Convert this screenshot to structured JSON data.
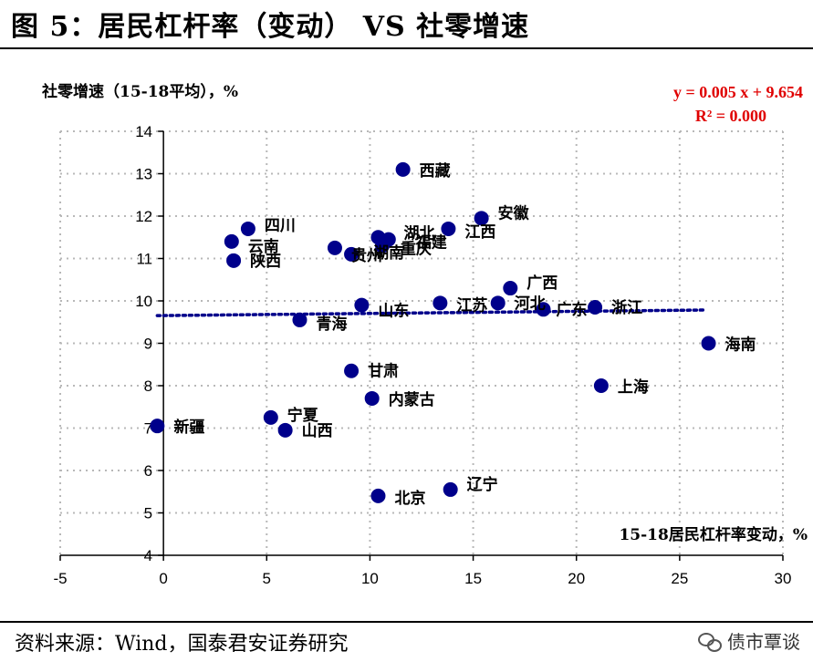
{
  "page": {
    "title": "图 5：居民杠杆率（变动） VS 社零增速",
    "source": "资料来源：Wind，国泰君安证券研究",
    "brand": "债市覃谈",
    "brand_icon": "wechat-icon"
  },
  "chart_data": {
    "type": "scatter",
    "ylabel": "社零增速（15-18平均），%",
    "xlabel": "15-18居民杠杆率变动，%",
    "xlim": [
      -5,
      30
    ],
    "ylim": [
      4,
      14
    ],
    "xticks": [
      "-5",
      "0",
      "5",
      "10",
      "15",
      "20",
      "25",
      "30"
    ],
    "yticks": [
      "4",
      "5",
      "6",
      "7",
      "8",
      "9",
      "10",
      "11",
      "12",
      "13",
      "14"
    ],
    "grid": true,
    "marker_color": "#00008b",
    "trendline_color": "#00008b",
    "equation": "y = 0.005 x + 9.654",
    "r_squared": "R² = 0.000",
    "equation_color": "#e00000",
    "trendline": {
      "slope": 0.005,
      "intercept": 9.654,
      "x_range": [
        -0.3,
        26.3
      ]
    },
    "points": [
      {
        "name": "西藏",
        "x": 11.6,
        "y": 13.1
      },
      {
        "name": "安徽",
        "x": 15.4,
        "y": 11.95
      },
      {
        "name": "江西",
        "x": 13.8,
        "y": 11.7
      },
      {
        "name": "四川",
        "x": 4.1,
        "y": 11.7
      },
      {
        "name": "云南",
        "x": 3.3,
        "y": 11.4
      },
      {
        "name": "陕西",
        "x": 3.4,
        "y": 10.95
      },
      {
        "name": "湖北",
        "x": 10.4,
        "y": 11.5
      },
      {
        "name": "福建",
        "x": 10.9,
        "y": 11.45
      },
      {
        "name": "重庆",
        "x": 10.6,
        "y": 11.3
      },
      {
        "name": "贵州",
        "x": 8.3,
        "y": 11.25
      },
      {
        "name": "湖南",
        "x": 9.1,
        "y": 11.1
      },
      {
        "name": "广西",
        "x": 16.8,
        "y": 10.3
      },
      {
        "name": "山东",
        "x": 9.6,
        "y": 9.9
      },
      {
        "name": "江苏",
        "x": 13.4,
        "y": 9.95
      },
      {
        "name": "河北",
        "x": 16.2,
        "y": 9.95
      },
      {
        "name": "广东",
        "x": 18.4,
        "y": 9.8
      },
      {
        "name": "浙江",
        "x": 20.9,
        "y": 9.85
      },
      {
        "name": "青海",
        "x": 6.6,
        "y": 9.55
      },
      {
        "name": "海南",
        "x": 26.4,
        "y": 9.0
      },
      {
        "name": "甘肃",
        "x": 9.1,
        "y": 8.35
      },
      {
        "name": "上海",
        "x": 21.2,
        "y": 8.0
      },
      {
        "name": "内蒙古",
        "x": 10.1,
        "y": 7.7
      },
      {
        "name": "宁夏",
        "x": 5.2,
        "y": 7.25
      },
      {
        "name": "新疆",
        "x": -0.3,
        "y": 7.05
      },
      {
        "name": "山西",
        "x": 5.9,
        "y": 6.95
      },
      {
        "name": "辽宁",
        "x": 13.9,
        "y": 5.55
      },
      {
        "name": "北京",
        "x": 10.4,
        "y": 5.4
      }
    ]
  }
}
